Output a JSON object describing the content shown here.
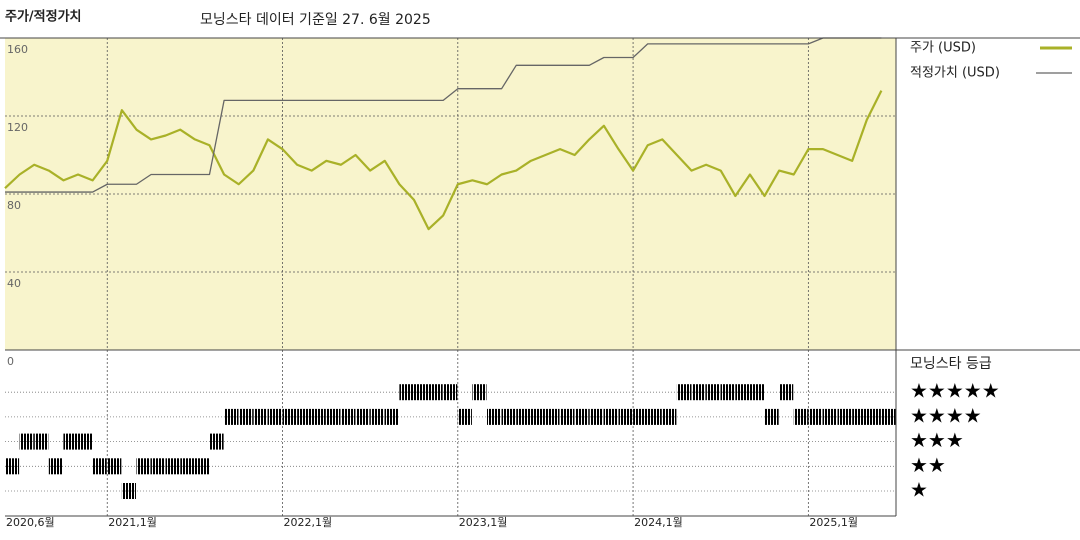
{
  "chart_data": {
    "type": "line",
    "title": "주가/적정가치",
    "subtitle": "모닝스타 데이터 기준일 27. 6월 2025",
    "x": [
      "2020-06",
      "2020-07",
      "2020-08",
      "2020-09",
      "2020-10",
      "2020-11",
      "2020-12",
      "2021-01",
      "2021-02",
      "2021-03",
      "2021-04",
      "2021-05",
      "2021-06",
      "2021-07",
      "2021-08",
      "2021-09",
      "2021-10",
      "2021-11",
      "2021-12",
      "2022-01",
      "2022-02",
      "2022-03",
      "2022-04",
      "2022-05",
      "2022-06",
      "2022-07",
      "2022-08",
      "2022-09",
      "2022-10",
      "2022-11",
      "2022-12",
      "2023-01",
      "2023-02",
      "2023-03",
      "2023-04",
      "2023-05",
      "2023-06",
      "2023-07",
      "2023-08",
      "2023-09",
      "2023-10",
      "2023-11",
      "2023-12",
      "2024-01",
      "2024-02",
      "2024-03",
      "2024-04",
      "2024-05",
      "2024-06",
      "2024-07",
      "2024-08",
      "2024-09",
      "2024-10",
      "2024-11",
      "2024-12",
      "2025-01",
      "2025-02",
      "2025-03",
      "2025-04",
      "2025-05",
      "2025-06"
    ],
    "series": [
      {
        "name": "주가 (USD)",
        "color": "#a9b128",
        "values": [
          83,
          90,
          95,
          92,
          87,
          90,
          87,
          97,
          123,
          113,
          108,
          110,
          113,
          108,
          105,
          90,
          85,
          92,
          108,
          103,
          95,
          92,
          97,
          95,
          100,
          92,
          97,
          85,
          77,
          62,
          69,
          85,
          87,
          85,
          90,
          92,
          97,
          100,
          103,
          100,
          108,
          115,
          103,
          92,
          105,
          108,
          100,
          92,
          95,
          92,
          79,
          90,
          79,
          92,
          90,
          103,
          103,
          100,
          97,
          118,
          133
        ]
      },
      {
        "name": "적정가치 (USD)",
        "color": "#666666",
        "values": [
          81,
          81,
          81,
          81,
          81,
          81,
          81,
          85,
          85,
          85,
          90,
          90,
          90,
          90,
          90,
          128,
          128,
          128,
          128,
          128,
          128,
          128,
          128,
          128,
          128,
          128,
          128,
          128,
          128,
          128,
          128,
          134,
          134,
          134,
          134,
          146,
          146,
          146,
          146,
          146,
          146,
          150,
          150,
          150,
          157,
          157,
          157,
          157,
          157,
          157,
          157,
          157,
          157,
          157,
          157,
          157,
          160,
          160,
          160,
          160,
          160
        ]
      }
    ],
    "xlim": [
      "2020-06",
      "2025-07"
    ],
    "xticks": [
      {
        "value": "2020-06",
        "label": "2020,6월"
      },
      {
        "value": "2021-01",
        "label": "2021,1월"
      },
      {
        "value": "2022-01",
        "label": "2022,1월"
      },
      {
        "value": "2023-01",
        "label": "2023,1월"
      },
      {
        "value": "2024-01",
        "label": "2024,1월"
      },
      {
        "value": "2025-01",
        "label": "2025,1월"
      }
    ],
    "ylim": [
      0,
      160
    ],
    "yticks": [
      0,
      40,
      80,
      120,
      160
    ],
    "grid": true,
    "background": "#f8f4cc",
    "rating": {
      "title": "모닝스타 등급",
      "levels": [
        "★",
        "★★",
        "★★★",
        "★★★★",
        "★★★★★"
      ],
      "color": "#333333",
      "top_color": "#3f7f6b",
      "values": [
        2,
        3,
        3,
        2,
        3,
        3,
        2,
        2,
        1,
        2,
        2,
        2,
        2,
        2,
        3,
        4,
        4,
        4,
        4,
        4,
        4,
        4,
        4,
        4,
        4,
        4,
        4,
        5,
        5,
        5,
        5,
        4,
        5,
        4,
        4,
        4,
        4,
        4,
        4,
        4,
        4,
        4,
        4,
        4,
        4,
        4,
        5,
        5,
        5,
        5,
        5,
        5,
        4,
        5,
        4,
        4,
        4,
        4,
        4,
        4,
        4
      ]
    }
  }
}
